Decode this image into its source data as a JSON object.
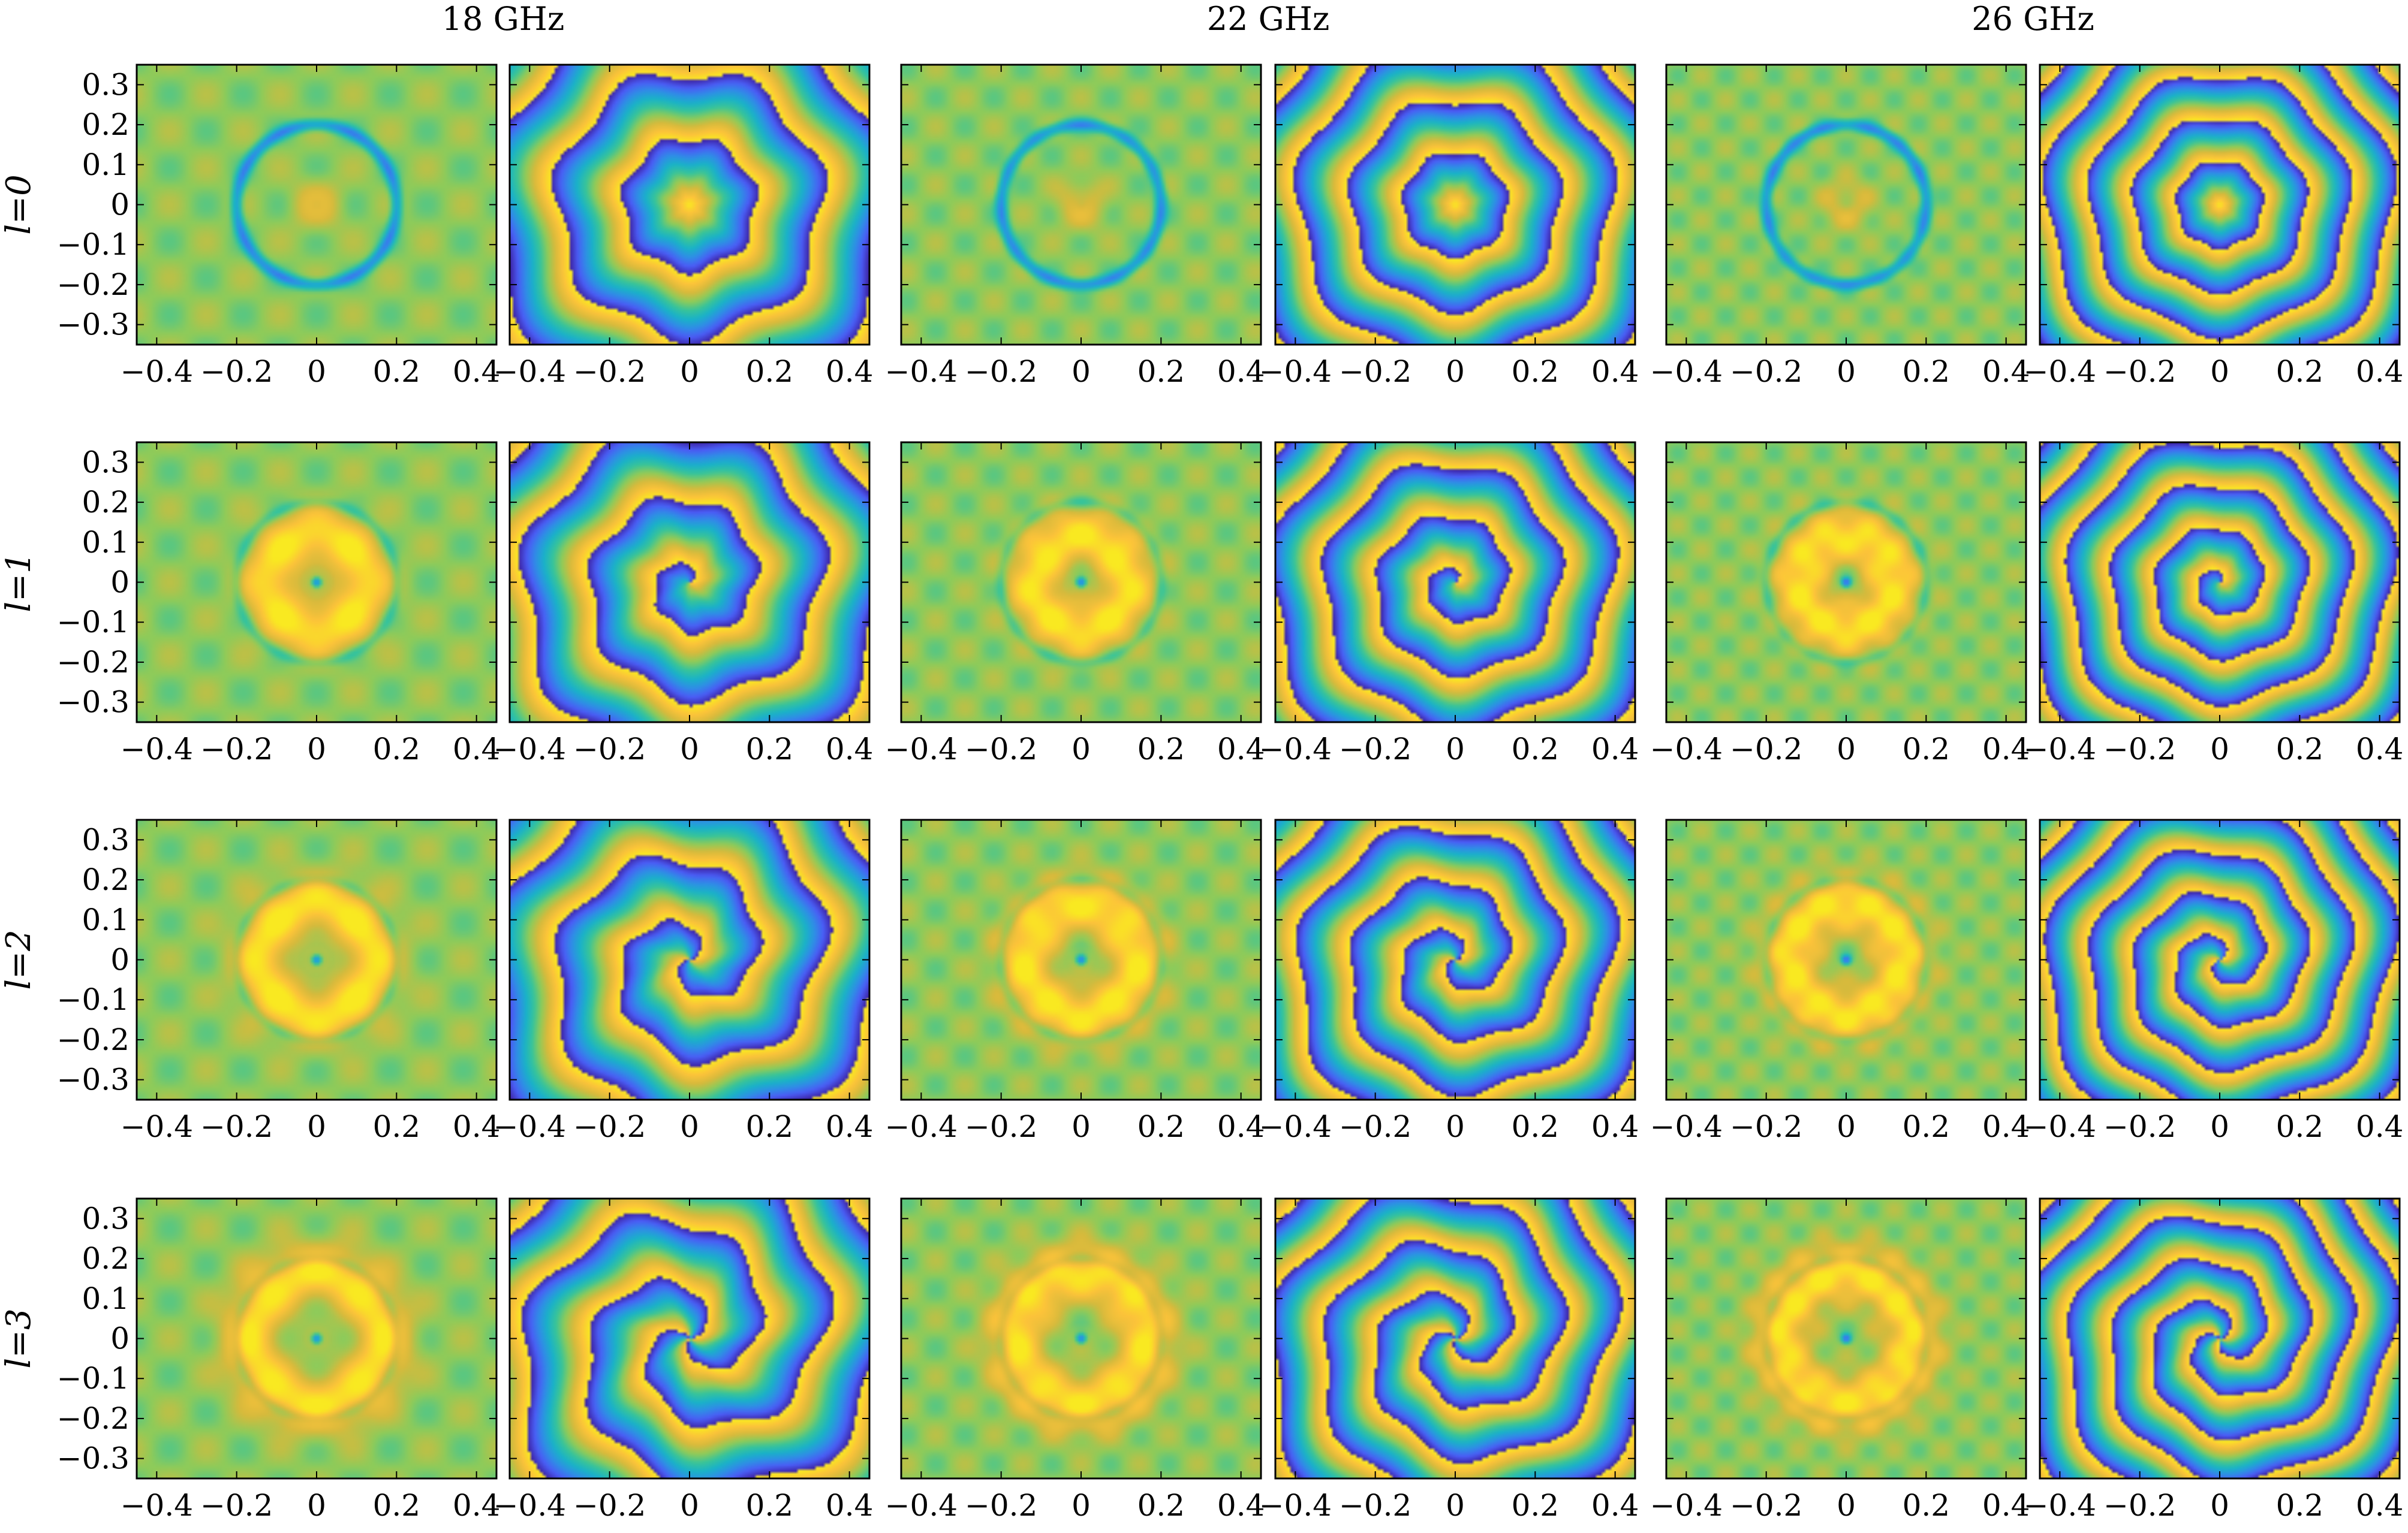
{
  "chart_data": {
    "type": "heatmap",
    "title": "",
    "layout": {
      "rows": 4,
      "cols": 6
    },
    "frequency_headers": [
      "18 GHz",
      "22 GHz",
      "26 GHz"
    ],
    "panel_kinds": [
      "amplitude",
      "phase"
    ],
    "mode_labels": [
      "l=0",
      "l=1",
      "l=2",
      "l=3"
    ],
    "modes": [
      0,
      1,
      2,
      3
    ],
    "frequencies_ghz": [
      18,
      22,
      26
    ],
    "xlim": [
      -0.45,
      0.45
    ],
    "ylim": [
      -0.35,
      0.35
    ],
    "xticks": [
      -0.4,
      -0.2,
      0,
      0.2,
      0.4
    ],
    "yticks": [
      0.3,
      0.2,
      0.1,
      0,
      -0.1,
      -0.2,
      -0.3
    ],
    "xtick_labels": [
      "−0.4",
      "−0.2",
      "0",
      "0.2",
      "0.4"
    ],
    "ytick_labels": [
      "0.3",
      "0.2",
      "0.1",
      "0",
      "−0.1",
      "−0.2",
      "−0.3"
    ],
    "colormap": [
      "#3e26a8",
      "#4a5df5",
      "#2f8ee6",
      "#1ab2c8",
      "#38c49a",
      "#8ecb5a",
      "#d7ba3c",
      "#fcc33a",
      "#f9e921"
    ],
    "grid": false,
    "legend": "none"
  }
}
